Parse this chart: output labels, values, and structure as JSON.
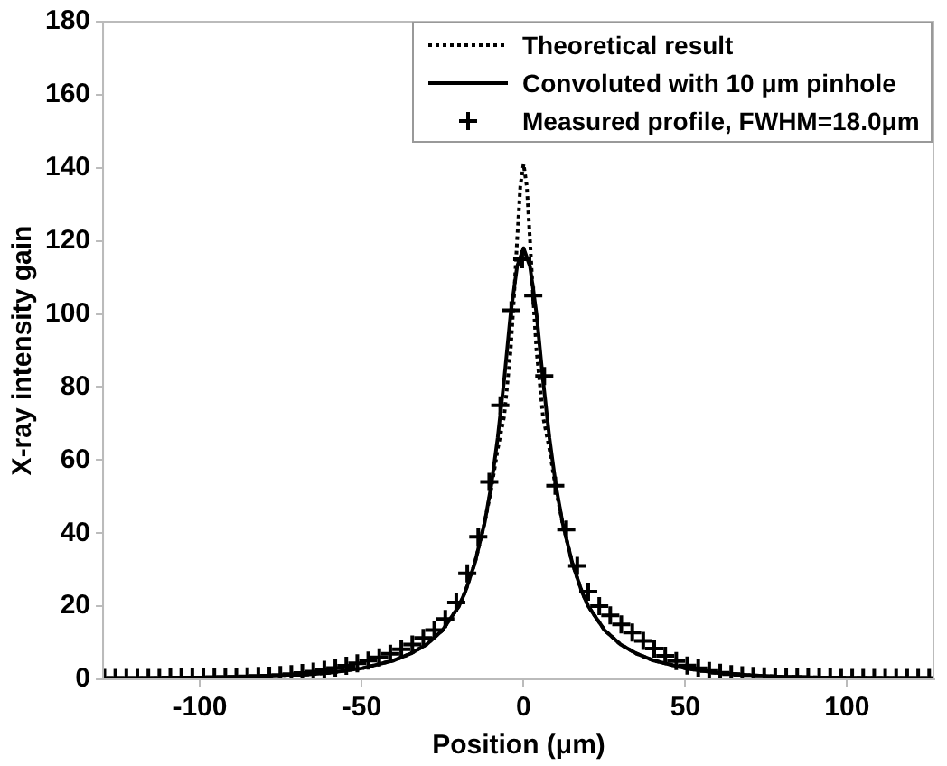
{
  "chart_data": {
    "type": "line",
    "xlabel": "Position (μm)",
    "ylabel": "X-ray intensity gain",
    "xlim": [
      -130,
      127
    ],
    "ylim": [
      0,
      180
    ],
    "xticks": [
      -100,
      -50,
      0,
      50,
      100
    ],
    "yticks": [
      0,
      20,
      40,
      60,
      80,
      100,
      120,
      140,
      160,
      180
    ],
    "grid": false,
    "legend": "top right",
    "series": [
      {
        "name": "Theoretical result",
        "color": "#000000",
        "line_style": "dotted",
        "marker": "none",
        "x": [
          -130,
          -100,
          -80,
          -70,
          -60,
          -50,
          -40,
          -35,
          -30,
          -25,
          -20,
          -18,
          -15,
          -12,
          -10,
          -8,
          -6,
          -4,
          -3,
          -2,
          -1,
          0,
          1,
          2,
          3,
          4,
          6,
          8,
          10,
          12,
          15,
          18,
          20,
          25,
          30,
          35,
          40,
          50,
          60,
          70,
          80,
          100,
          127
        ],
        "values": [
          0.2,
          0.4,
          0.7,
          1.1,
          1.8,
          3,
          5.2,
          7,
          9.5,
          13.5,
          20,
          24,
          32,
          43,
          52,
          63,
          72,
          90,
          104,
          120,
          135,
          141,
          135,
          120,
          104,
          90,
          72,
          63,
          52,
          43,
          32,
          24,
          20,
          13.5,
          9.5,
          7,
          5.2,
          3,
          1.8,
          1.1,
          0.7,
          0.4,
          0.2
        ]
      },
      {
        "name": "Convoluted with 10 μm pinhole",
        "color": "#000000",
        "line_style": "solid",
        "marker": "none",
        "x": [
          -130,
          -100,
          -80,
          -70,
          -60,
          -50,
          -40,
          -35,
          -30,
          -25,
          -20,
          -18,
          -15,
          -12,
          -10,
          -8,
          -6,
          -4,
          -2,
          0,
          2,
          4,
          6,
          8,
          10,
          12,
          15,
          18,
          20,
          25,
          30,
          35,
          40,
          50,
          60,
          70,
          80,
          100,
          127
        ],
        "values": [
          0.2,
          0.4,
          0.7,
          1.1,
          1.8,
          3,
          5.2,
          7,
          9.5,
          13.5,
          20,
          24,
          32,
          43,
          53,
          66,
          82,
          100,
          113,
          118,
          113,
          100,
          82,
          66,
          53,
          43,
          32,
          24,
          20,
          13.5,
          9.5,
          7,
          5.2,
          3,
          1.8,
          1.1,
          0.7,
          0.4,
          0.2
        ]
      },
      {
        "name": "Measured profile, FWHM=18.0μm",
        "type": "scatter",
        "color": "#000000",
        "marker": "cross",
        "x": [
          -129.6,
          -126.2,
          -122.8,
          -119.4,
          -116,
          -112.6,
          -109.2,
          -105.8,
          -102.4,
          -99,
          -95.6,
          -92.2,
          -88.8,
          -85.4,
          -82,
          -78.6,
          -75.2,
          -71.8,
          -68.4,
          -65,
          -61.6,
          -58.2,
          -54.8,
          -51.4,
          -48,
          -44.6,
          -41.2,
          -37.8,
          -34.4,
          -31,
          -27.6,
          -24.2,
          -20.8,
          -17.4,
          -14,
          -10.6,
          -7.2,
          -3.8,
          -0.4,
          3,
          6.4,
          9.8,
          13.2,
          16.6,
          20,
          23.4,
          26.8,
          30.2,
          33.6,
          37,
          40.4,
          43.8,
          47.2,
          50.6,
          54,
          57.4,
          60.8,
          64.2,
          67.6,
          71,
          74.4,
          77.8,
          81.2,
          84.6,
          88,
          91.4,
          94.8,
          98.2,
          101.6,
          105,
          108.4,
          111.8,
          115.2,
          118.6,
          122,
          125.4
        ],
        "values": [
          0.4,
          0.4,
          0.4,
          0.4,
          0.4,
          0.4,
          0.5,
          0.5,
          0.5,
          0.5,
          0.6,
          0.6,
          0.7,
          0.8,
          0.9,
          1,
          1.2,
          1.4,
          1.7,
          2.1,
          2.6,
          3.1,
          3.7,
          4.4,
          5.1,
          6,
          7,
          8.2,
          9.5,
          11.3,
          13.5,
          16.5,
          21,
          29,
          39,
          54,
          75,
          101,
          115,
          105,
          83,
          53,
          41,
          31,
          24,
          20,
          17.5,
          15,
          12.8,
          10.5,
          8.4,
          6.4,
          5,
          3.8,
          3,
          2.3,
          1.8,
          1.4,
          1.1,
          0.9,
          0.8,
          0.7,
          0.6,
          0.6,
          0.5,
          0.5,
          0.5,
          0.4,
          0.4,
          0.4,
          0.4,
          0.4,
          0.4,
          0.4,
          0.4,
          0.4
        ]
      }
    ]
  }
}
